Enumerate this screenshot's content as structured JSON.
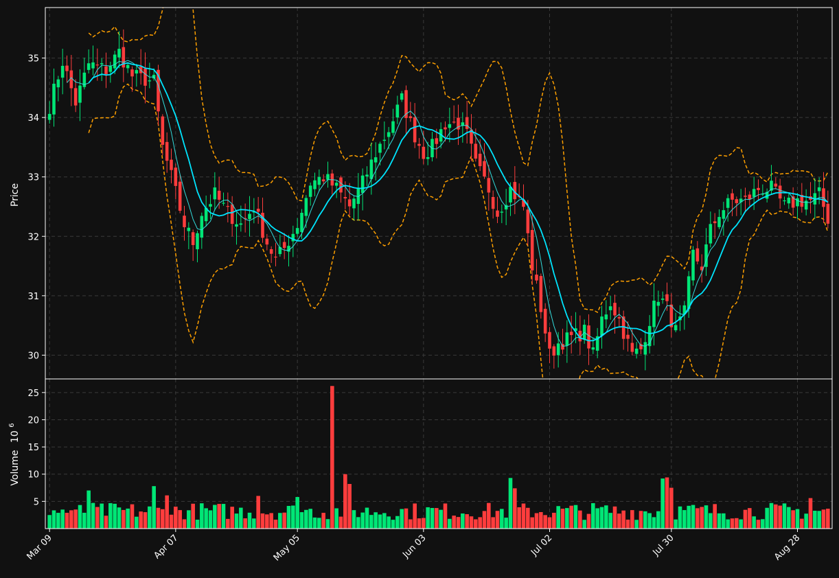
{
  "colors": {
    "background": "#111111",
    "up": "#00e676",
    "down": "#ff3d3d",
    "grid": "#3a3a3a",
    "axis": "#ffffff",
    "sma_fast": "#33dede",
    "sma_slow": "#00e5ff",
    "bands": "#ffa000"
  },
  "chart_data": {
    "type": "candlestick",
    "start_date": "2024-03-09",
    "x_tick_labels": [
      "Mar 09",
      "Apr 07",
      "May 05",
      "Jun 03",
      "Jul 02",
      "Jul 30",
      "Aug 28"
    ],
    "price_ylabel": "Price",
    "price_yticks": [
      30,
      31,
      32,
      33,
      34,
      35
    ],
    "price_ylim": [
      29.6,
      35.85
    ],
    "volume_ylabel": "Volume",
    "volume_exponent": "10",
    "volume_exponent_power": "6",
    "volume_yticks": [
      5,
      10,
      15,
      20,
      25
    ],
    "volume_ylim": [
      0,
      27.5
    ],
    "grid": true,
    "anchors": [
      [
        0,
        34.2
      ],
      [
        3,
        34.95
      ],
      [
        6,
        34.25
      ],
      [
        9,
        34.9
      ],
      [
        13,
        34.8
      ],
      [
        16,
        35.1
      ],
      [
        19,
        34.7
      ],
      [
        24,
        34.6
      ],
      [
        26,
        33.5
      ],
      [
        28,
        33.0
      ],
      [
        31,
        32.2
      ],
      [
        33,
        31.9
      ],
      [
        35,
        32.4
      ],
      [
        38,
        32.7
      ],
      [
        41,
        32.4
      ],
      [
        44,
        32.2
      ],
      [
        47,
        32.5
      ],
      [
        50,
        31.9
      ],
      [
        52,
        31.6
      ],
      [
        54,
        31.8
      ],
      [
        57,
        32.2
      ],
      [
        60,
        32.9
      ],
      [
        63,
        33.0
      ],
      [
        66,
        32.8
      ],
      [
        69,
        32.5
      ],
      [
        72,
        32.9
      ],
      [
        75,
        33.4
      ],
      [
        78,
        33.8
      ],
      [
        81,
        34.3
      ],
      [
        84,
        33.7
      ],
      [
        86,
        33.4
      ],
      [
        88,
        33.5
      ],
      [
        91,
        33.9
      ],
      [
        94,
        33.9
      ],
      [
        96,
        33.7
      ],
      [
        98,
        33.2
      ],
      [
        101,
        32.8
      ],
      [
        103,
        32.4
      ],
      [
        106,
        32.8
      ],
      [
        109,
        32.5
      ],
      [
        111,
        31.5
      ],
      [
        113,
        30.8
      ],
      [
        115,
        30.0
      ],
      [
        117,
        30.2
      ],
      [
        120,
        30.3
      ],
      [
        123,
        30.4
      ],
      [
        125,
        30.0
      ],
      [
        127,
        30.6
      ],
      [
        129,
        30.9
      ],
      [
        131,
        30.6
      ],
      [
        134,
        30.0
      ],
      [
        136,
        30.1
      ],
      [
        138,
        30.6
      ],
      [
        140,
        31.0
      ],
      [
        142,
        30.8
      ],
      [
        144,
        30.4
      ],
      [
        146,
        30.7
      ],
      [
        148,
        31.7
      ],
      [
        150,
        31.5
      ],
      [
        152,
        32.1
      ],
      [
        154,
        32.4
      ],
      [
        157,
        32.6
      ],
      [
        160,
        32.6
      ],
      [
        163,
        32.8
      ],
      [
        166,
        32.8
      ],
      [
        169,
        32.5
      ],
      [
        172,
        32.6
      ],
      [
        175,
        32.6
      ],
      [
        177,
        32.7
      ],
      [
        179,
        32.3
      ]
    ],
    "volume_spikes": [
      [
        6,
        3.5
      ],
      [
        9,
        7.0
      ],
      [
        24,
        7.8
      ],
      [
        27,
        6.1
      ],
      [
        48,
        6.0
      ],
      [
        57,
        5.8
      ],
      [
        65,
        26.2
      ],
      [
        68,
        10.0
      ],
      [
        69,
        8.2
      ],
      [
        106,
        9.3
      ],
      [
        107,
        7.4
      ],
      [
        141,
        9.2
      ],
      [
        142,
        9.4
      ],
      [
        143,
        7.5
      ],
      [
        175,
        5.6
      ]
    ],
    "sma_fast_window": 5,
    "sma_slow_window": 10,
    "band_window": 10,
    "band_width": 2
  }
}
